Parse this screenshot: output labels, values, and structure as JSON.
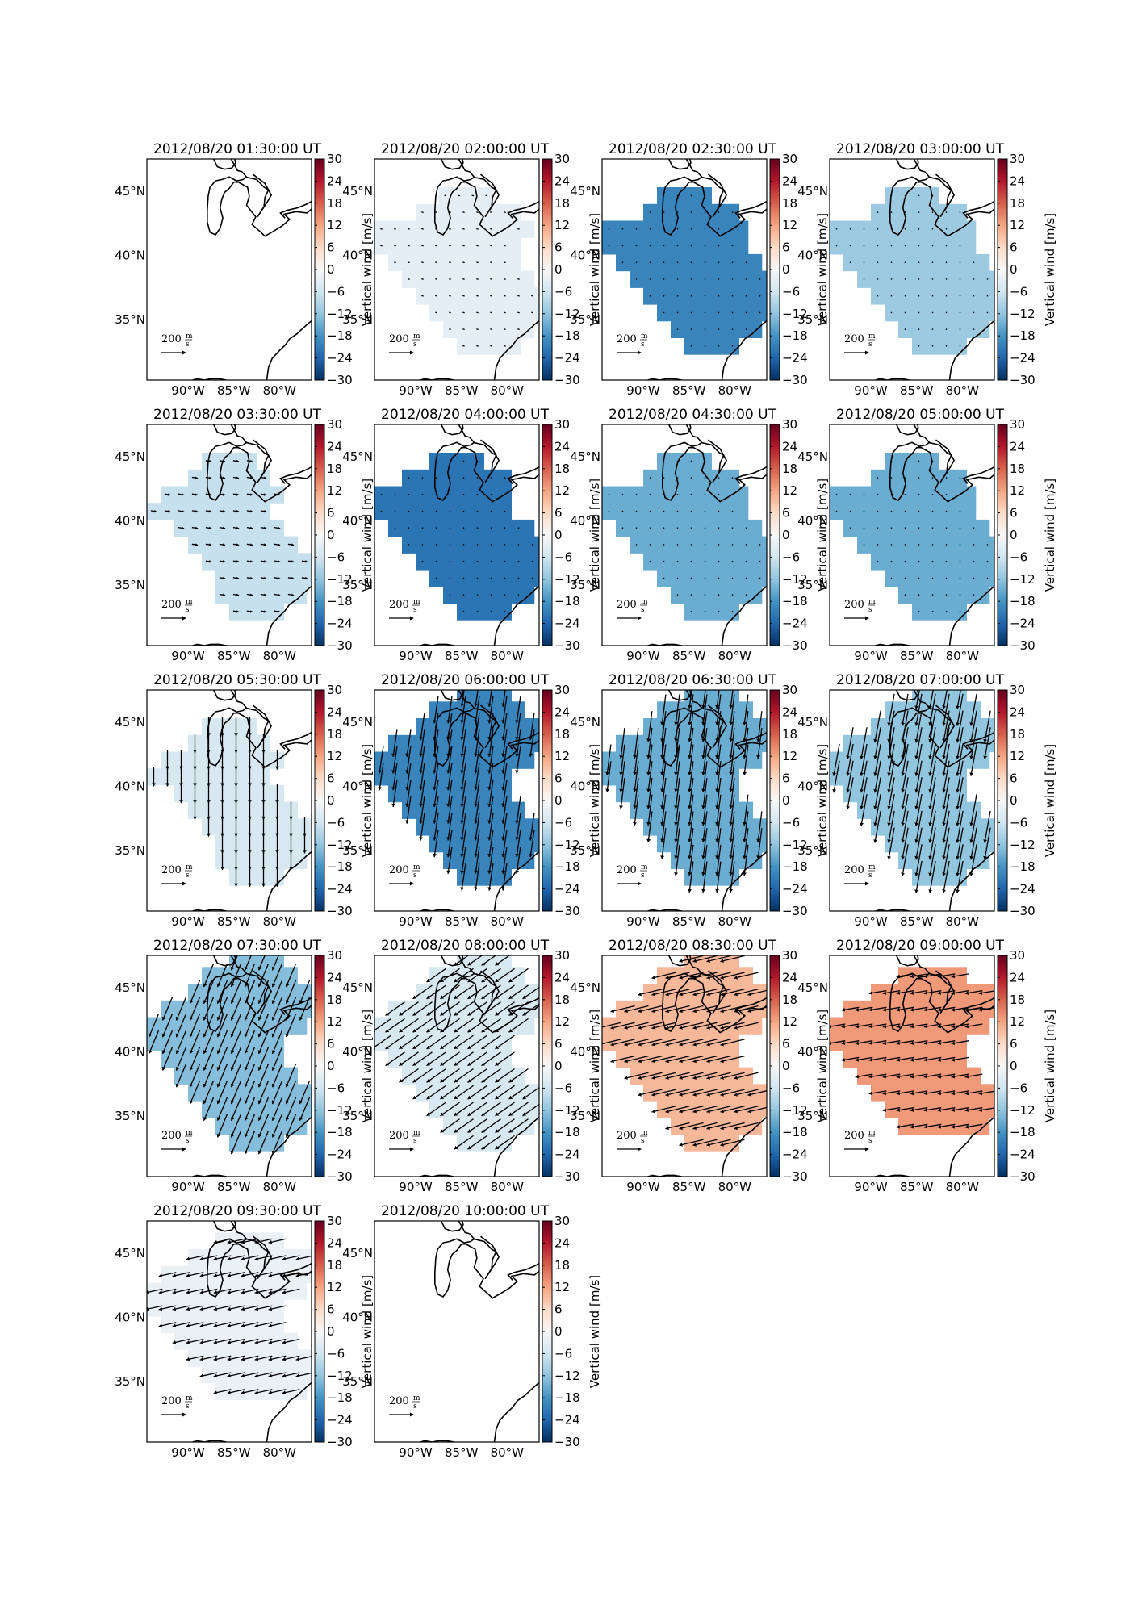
{
  "figure": {
    "colorbar": {
      "label": "Vertical wind [m/s]",
      "ticks": [
        "30",
        "24",
        "18",
        "12",
        "6",
        "0",
        "−6",
        "−12",
        "−18",
        "−24",
        "−30"
      ],
      "range": [
        -30,
        30
      ],
      "colormap": "RdBu_r"
    },
    "lon_tick_labels": [
      "90°W",
      "85°W",
      "80°W"
    ],
    "lat_tick_labels": [
      "45°N",
      "40°N",
      "35°N"
    ],
    "reference_vector": {
      "value": "200",
      "unit_numerator": "m",
      "unit_denominator": "s"
    },
    "colors": {
      "coastline": "#000000",
      "arrow": "#000000",
      "background": "#ffffff"
    },
    "panels": [
      {
        "title": "2012/08/20 01:30:00 UT",
        "vertical_wind": null,
        "region": null,
        "arrow": null
      },
      {
        "title": "2012/08/20 02:00:00 UT",
        "vertical_wind": -3,
        "region": "A",
        "arrow": {
          "u": -20,
          "v": 5
        }
      },
      {
        "title": "2012/08/20 02:30:00 UT",
        "vertical_wind": -20,
        "region": "B",
        "arrow": {
          "u": 0,
          "v": 0
        }
      },
      {
        "title": "2012/08/20 03:00:00 UT",
        "vertical_wind": -11,
        "region": "B",
        "arrow": {
          "u": 0,
          "v": 0
        }
      },
      {
        "title": "2012/08/20 03:30:00 UT",
        "vertical_wind": -7,
        "region": "C",
        "arrow": {
          "u": 60,
          "v": -10
        }
      },
      {
        "title": "2012/08/20 04:00:00 UT",
        "vertical_wind": -22,
        "region": "D",
        "arrow": {
          "u": 0,
          "v": 0
        }
      },
      {
        "title": "2012/08/20 04:30:00 UT",
        "vertical_wind": -15,
        "region": "B",
        "arrow": {
          "u": 0,
          "v": 0
        }
      },
      {
        "title": "2012/08/20 05:00:00 UT",
        "vertical_wind": -15,
        "region": "B",
        "arrow": {
          "u": 0,
          "v": 0
        }
      },
      {
        "title": "2012/08/20 05:30:00 UT",
        "vertical_wind": -5,
        "region": "C",
        "arrow": {
          "u": 0,
          "v": -200
        }
      },
      {
        "title": "2012/08/20 06:00:00 UT",
        "vertical_wind": -20,
        "region": "E",
        "arrow": {
          "u": -40,
          "v": -280
        }
      },
      {
        "title": "2012/08/20 06:30:00 UT",
        "vertical_wind": -15,
        "region": "E",
        "arrow": {
          "u": -40,
          "v": -320
        }
      },
      {
        "title": "2012/08/20 07:00:00 UT",
        "vertical_wind": -12,
        "region": "E",
        "arrow": {
          "u": -60,
          "v": -330
        }
      },
      {
        "title": "2012/08/20 07:30:00 UT",
        "vertical_wind": -13,
        "region": "E",
        "arrow": {
          "u": -100,
          "v": -240
        }
      },
      {
        "title": "2012/08/20 08:00:00 UT",
        "vertical_wind": -5,
        "region": "E",
        "arrow": {
          "u": -200,
          "v": -140
        }
      },
      {
        "title": "2012/08/20 08:30:00 UT",
        "vertical_wind": 10,
        "region": "E",
        "arrow": {
          "u": -250,
          "v": -60
        }
      },
      {
        "title": "2012/08/20 09:00:00 UT",
        "vertical_wind": 13,
        "region": "F",
        "arrow": {
          "u": -180,
          "v": -30
        }
      },
      {
        "title": "2012/08/20 09:30:00 UT",
        "vertical_wind": -2,
        "region": "F",
        "arrow": {
          "u": -180,
          "v": -40
        }
      },
      {
        "title": "2012/08/20 10:00:00 UT",
        "vertical_wind": null,
        "region": null,
        "arrow": null
      }
    ]
  }
}
